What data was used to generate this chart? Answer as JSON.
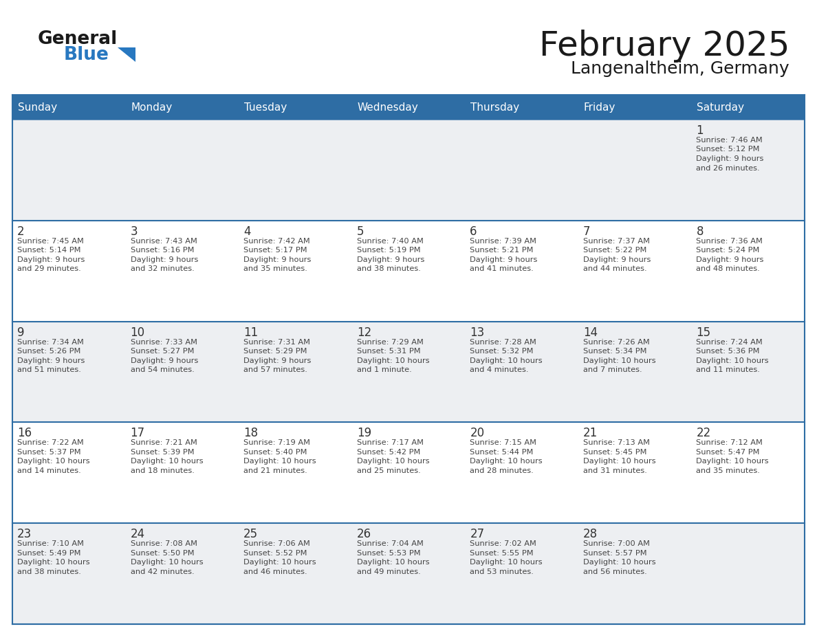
{
  "title": "February 2025",
  "subtitle": "Langenaltheim, Germany",
  "header_bg": "#2E6DA4",
  "header_text_color": "#FFFFFF",
  "row_bg_gray": "#EDEFF2",
  "row_bg_white": "#FFFFFF",
  "border_color": "#2E6DA4",
  "text_color": "#444444",
  "day_num_color": "#333333",
  "days_of_week": [
    "Sunday",
    "Monday",
    "Tuesday",
    "Wednesday",
    "Thursday",
    "Friday",
    "Saturday"
  ],
  "logo_general_color": "#1a1a1a",
  "logo_blue_color": "#2878C0",
  "title_color": "#1a1a1a",
  "calendar_data": [
    [
      {
        "day": "",
        "info": ""
      },
      {
        "day": "",
        "info": ""
      },
      {
        "day": "",
        "info": ""
      },
      {
        "day": "",
        "info": ""
      },
      {
        "day": "",
        "info": ""
      },
      {
        "day": "",
        "info": ""
      },
      {
        "day": "1",
        "info": "Sunrise: 7:46 AM\nSunset: 5:12 PM\nDaylight: 9 hours\nand 26 minutes."
      }
    ],
    [
      {
        "day": "2",
        "info": "Sunrise: 7:45 AM\nSunset: 5:14 PM\nDaylight: 9 hours\nand 29 minutes."
      },
      {
        "day": "3",
        "info": "Sunrise: 7:43 AM\nSunset: 5:16 PM\nDaylight: 9 hours\nand 32 minutes."
      },
      {
        "day": "4",
        "info": "Sunrise: 7:42 AM\nSunset: 5:17 PM\nDaylight: 9 hours\nand 35 minutes."
      },
      {
        "day": "5",
        "info": "Sunrise: 7:40 AM\nSunset: 5:19 PM\nDaylight: 9 hours\nand 38 minutes."
      },
      {
        "day": "6",
        "info": "Sunrise: 7:39 AM\nSunset: 5:21 PM\nDaylight: 9 hours\nand 41 minutes."
      },
      {
        "day": "7",
        "info": "Sunrise: 7:37 AM\nSunset: 5:22 PM\nDaylight: 9 hours\nand 44 minutes."
      },
      {
        "day": "8",
        "info": "Sunrise: 7:36 AM\nSunset: 5:24 PM\nDaylight: 9 hours\nand 48 minutes."
      }
    ],
    [
      {
        "day": "9",
        "info": "Sunrise: 7:34 AM\nSunset: 5:26 PM\nDaylight: 9 hours\nand 51 minutes."
      },
      {
        "day": "10",
        "info": "Sunrise: 7:33 AM\nSunset: 5:27 PM\nDaylight: 9 hours\nand 54 minutes."
      },
      {
        "day": "11",
        "info": "Sunrise: 7:31 AM\nSunset: 5:29 PM\nDaylight: 9 hours\nand 57 minutes."
      },
      {
        "day": "12",
        "info": "Sunrise: 7:29 AM\nSunset: 5:31 PM\nDaylight: 10 hours\nand 1 minute."
      },
      {
        "day": "13",
        "info": "Sunrise: 7:28 AM\nSunset: 5:32 PM\nDaylight: 10 hours\nand 4 minutes."
      },
      {
        "day": "14",
        "info": "Sunrise: 7:26 AM\nSunset: 5:34 PM\nDaylight: 10 hours\nand 7 minutes."
      },
      {
        "day": "15",
        "info": "Sunrise: 7:24 AM\nSunset: 5:36 PM\nDaylight: 10 hours\nand 11 minutes."
      }
    ],
    [
      {
        "day": "16",
        "info": "Sunrise: 7:22 AM\nSunset: 5:37 PM\nDaylight: 10 hours\nand 14 minutes."
      },
      {
        "day": "17",
        "info": "Sunrise: 7:21 AM\nSunset: 5:39 PM\nDaylight: 10 hours\nand 18 minutes."
      },
      {
        "day": "18",
        "info": "Sunrise: 7:19 AM\nSunset: 5:40 PM\nDaylight: 10 hours\nand 21 minutes."
      },
      {
        "day": "19",
        "info": "Sunrise: 7:17 AM\nSunset: 5:42 PM\nDaylight: 10 hours\nand 25 minutes."
      },
      {
        "day": "20",
        "info": "Sunrise: 7:15 AM\nSunset: 5:44 PM\nDaylight: 10 hours\nand 28 minutes."
      },
      {
        "day": "21",
        "info": "Sunrise: 7:13 AM\nSunset: 5:45 PM\nDaylight: 10 hours\nand 31 minutes."
      },
      {
        "day": "22",
        "info": "Sunrise: 7:12 AM\nSunset: 5:47 PM\nDaylight: 10 hours\nand 35 minutes."
      }
    ],
    [
      {
        "day": "23",
        "info": "Sunrise: 7:10 AM\nSunset: 5:49 PM\nDaylight: 10 hours\nand 38 minutes."
      },
      {
        "day": "24",
        "info": "Sunrise: 7:08 AM\nSunset: 5:50 PM\nDaylight: 10 hours\nand 42 minutes."
      },
      {
        "day": "25",
        "info": "Sunrise: 7:06 AM\nSunset: 5:52 PM\nDaylight: 10 hours\nand 46 minutes."
      },
      {
        "day": "26",
        "info": "Sunrise: 7:04 AM\nSunset: 5:53 PM\nDaylight: 10 hours\nand 49 minutes."
      },
      {
        "day": "27",
        "info": "Sunrise: 7:02 AM\nSunset: 5:55 PM\nDaylight: 10 hours\nand 53 minutes."
      },
      {
        "day": "28",
        "info": "Sunrise: 7:00 AM\nSunset: 5:57 PM\nDaylight: 10 hours\nand 56 minutes."
      },
      {
        "day": "",
        "info": ""
      }
    ]
  ],
  "row_backgrounds": [
    "gray",
    "white",
    "gray",
    "white",
    "gray"
  ]
}
